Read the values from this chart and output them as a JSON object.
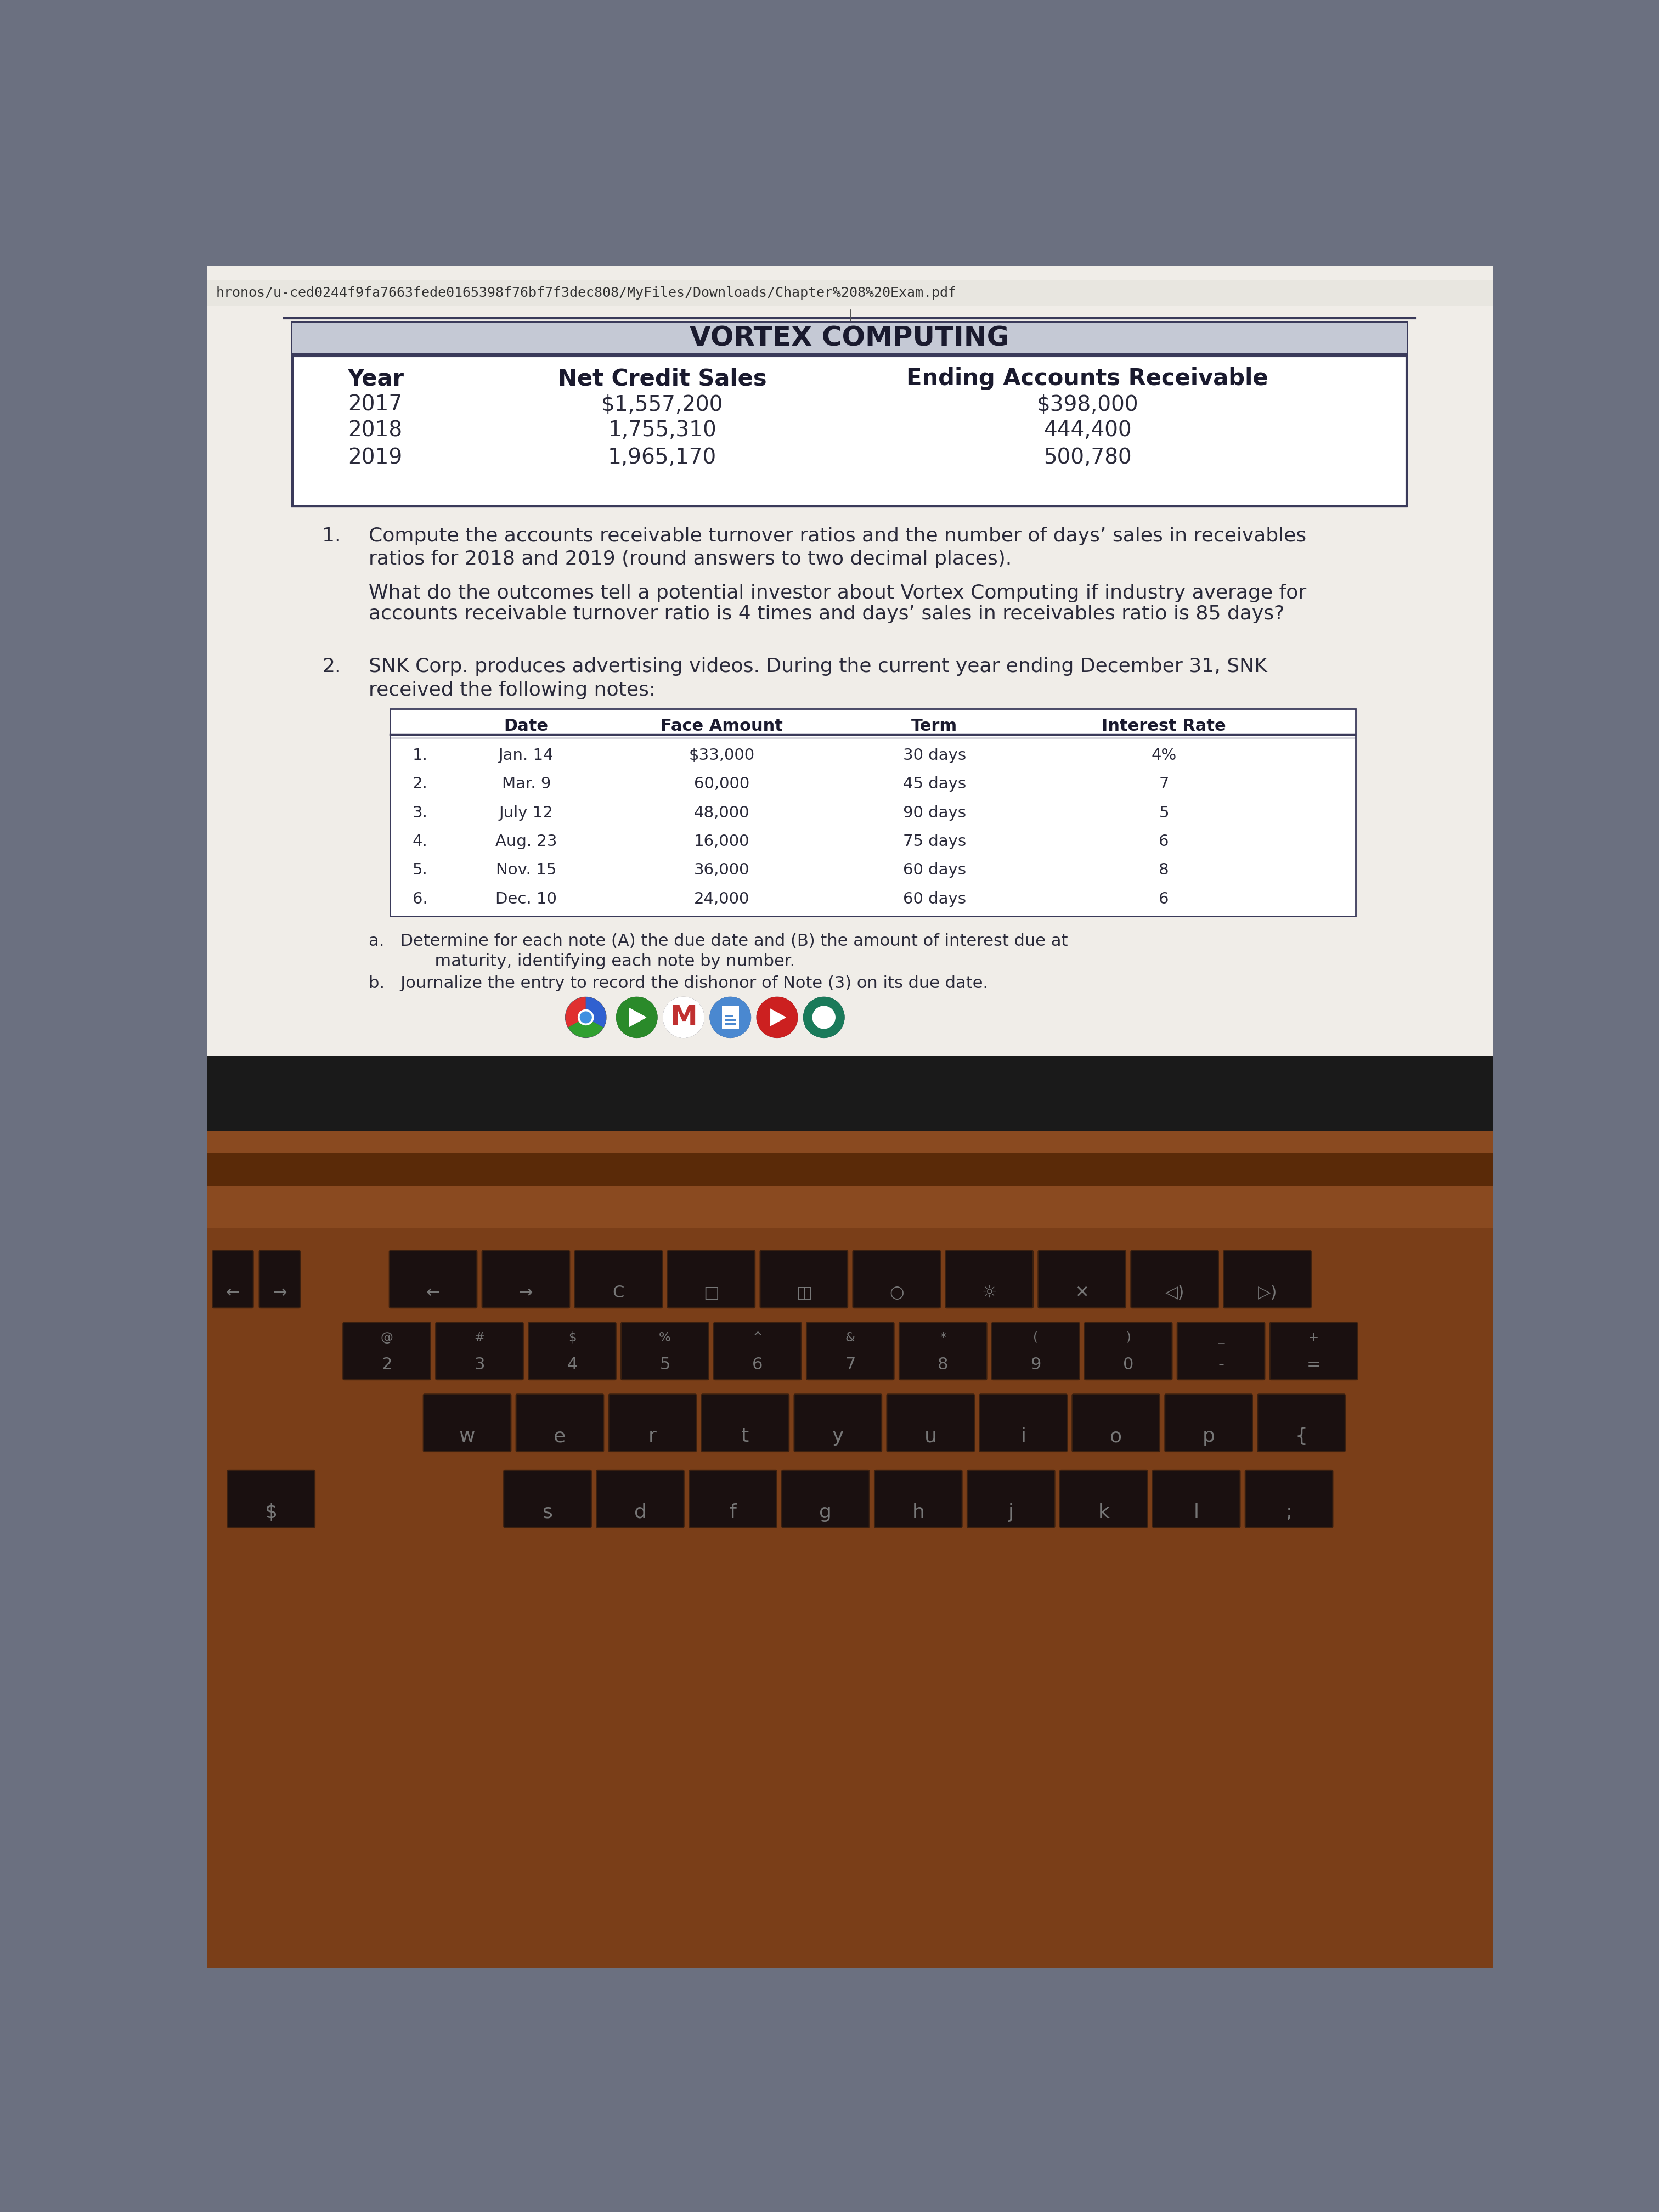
{
  "url_text": "hronos/u-ced0244f9fa7663fede0165398f76bf7f3dec808/MyFiles/Downloads/Chapter%208%20Exam.pdf",
  "table1_title": "VORTEX COMPUTING",
  "table1_headers": [
    "Year",
    "Net Credit Sales",
    "Ending Accounts Receivable"
  ],
  "table1_rows": [
    [
      "2017",
      "$1,557,200",
      "$398,000"
    ],
    [
      "2018",
      "1,755,310",
      "444,400"
    ],
    [
      "2019",
      "1,965,170",
      "500,780"
    ]
  ],
  "question1_num": "1.",
  "question1_text1": "Compute the accounts receivable turnover ratios and the number of days’ sales in receivables",
  "question1_text2": "ratios for 2018 and 2019 (round answers to two decimal places).",
  "question1_subtext1": "What do the outcomes tell a potential investor about Vortex Computing if industry average for",
  "question1_subtext2": "accounts receivable turnover ratio is 4 times and days’ sales in receivables ratio is 85 days?",
  "question2_num": "2.",
  "question2_line1": "SNK Corp. produces advertising videos. During the current year ending December 31, SNK",
  "question2_line2": "received the following notes:",
  "table2_headers": [
    "Date",
    "Face Amount",
    "Term",
    "Interest Rate"
  ],
  "table2_rows": [
    [
      "1.",
      "Jan. 14",
      "$33,000",
      "30 days",
      "4%"
    ],
    [
      "2.",
      "Mar. 9",
      "60,000",
      "45 days",
      "7"
    ],
    [
      "3.",
      "July 12",
      "48,000",
      "90 days",
      "5"
    ],
    [
      "4.",
      "Aug. 23",
      "16,000",
      "75 days",
      "6"
    ],
    [
      "5.",
      "Nov. 15",
      "36,000",
      "60 days",
      "8"
    ],
    [
      "6.",
      "Dec. 10",
      "24,000",
      "60 days",
      "6"
    ]
  ],
  "q2a_line1": "a.   Determine for each note (A) the due date and (B) the amount of interest due at",
  "q2a_line2": "      maturity, identifying each note by number.",
  "q2b_line1": "b.   Journalize the entry to record the dishonor of Note (3) on its due date.",
  "screen_bg": "#6b7080",
  "paper_color": "#f2efe8",
  "table1_header_bg": "#c5c9d5",
  "table_border": "#3a3a5a",
  "text_dark": "#1a1a2e",
  "text_body": "#2a2a3a",
  "laptop_body": "#8b5a3a",
  "laptop_dark": "#2a1a0e",
  "keyboard_bg": "#7a4a2a",
  "key_color": "#1a1a1a",
  "key_text": "#888888",
  "screen_bezel": "#1a1a1a",
  "taskbar_bg": "#3a3d4a",
  "icon_chrome": "#e8a020",
  "icon_play": "#40a840",
  "icon_gmail": "#d04030",
  "icon_doc": "#4080d0",
  "icon_yt": "#d03030",
  "icon_meet": "#1a7a5a"
}
